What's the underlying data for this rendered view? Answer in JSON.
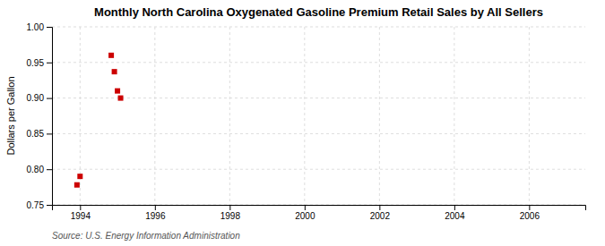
{
  "chart_data": {
    "type": "scatter",
    "title": "Monthly North Carolina Oxygenated Gasoline Premium Retail Sales by All Sellers",
    "ylabel": "Dollars per Gallon",
    "source": "Source: U.S. Energy Information Administration",
    "x": [
      1993.917,
      1994.0,
      1994.833,
      1994.917,
      1995.0,
      1995.083
    ],
    "values": [
      0.778,
      0.79,
      0.96,
      0.937,
      0.91,
      0.9
    ],
    "color": "#cc0000",
    "marker": "square",
    "xlim": [
      1993.25,
      2007.5
    ],
    "ylim": [
      0.75,
      1.0
    ],
    "xticks": [
      1994,
      1996,
      1998,
      2000,
      2002,
      2004,
      2006
    ],
    "yticks": [
      0.75,
      {
        "value": 0.8,
        "label": "0.80"
      },
      0.85,
      {
        "value": 0.9,
        "label": "0.90"
      },
      0.95,
      {
        "value": 1.0,
        "label": "1.00"
      }
    ],
    "grid": true
  }
}
